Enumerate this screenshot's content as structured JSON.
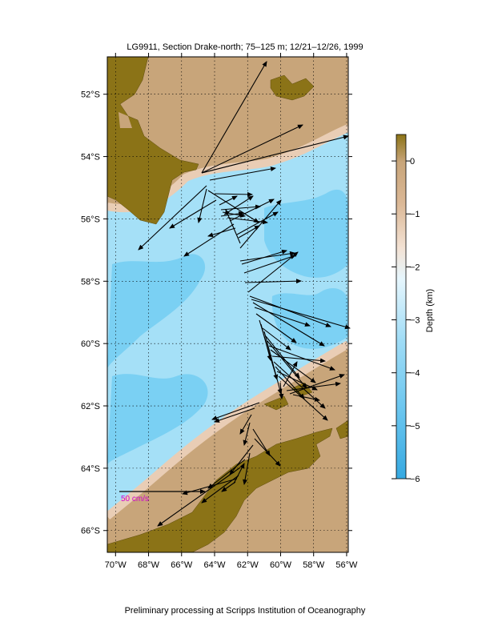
{
  "title": "LG9911, Section Drake-north; 75–125 m; 12/21–12/26, 1999",
  "footer": "Preliminary processing at Scripps Institution of Oceanography",
  "scale_label": "50 cm/s",
  "lat_labels": [
    "52°S",
    "54°S",
    "56°S",
    "58°S",
    "60°S",
    "62°S",
    "64°S",
    "66°S"
  ],
  "lon_labels": [
    "70°W",
    "68°W",
    "66°W",
    "64°W",
    "62°W",
    "60°W",
    "58°W",
    "56°W"
  ],
  "colorbar": {
    "label": "Depth (km)",
    "ticks": [
      "0",
      "−1",
      "−2",
      "−3",
      "−4",
      "−5",
      "−6"
    ]
  },
  "colors": {
    "land": "#8b7317",
    "shelf": "#c8a57a",
    "slope": "#e9cdb5",
    "deep": "#a5e0f7",
    "abyss": "#72cdf2",
    "scale_text": "#d000d0"
  },
  "map_extent": {
    "lon": [
      -70.5,
      -55.9
    ],
    "lat": [
      -66.7,
      -50.8
    ]
  }
}
